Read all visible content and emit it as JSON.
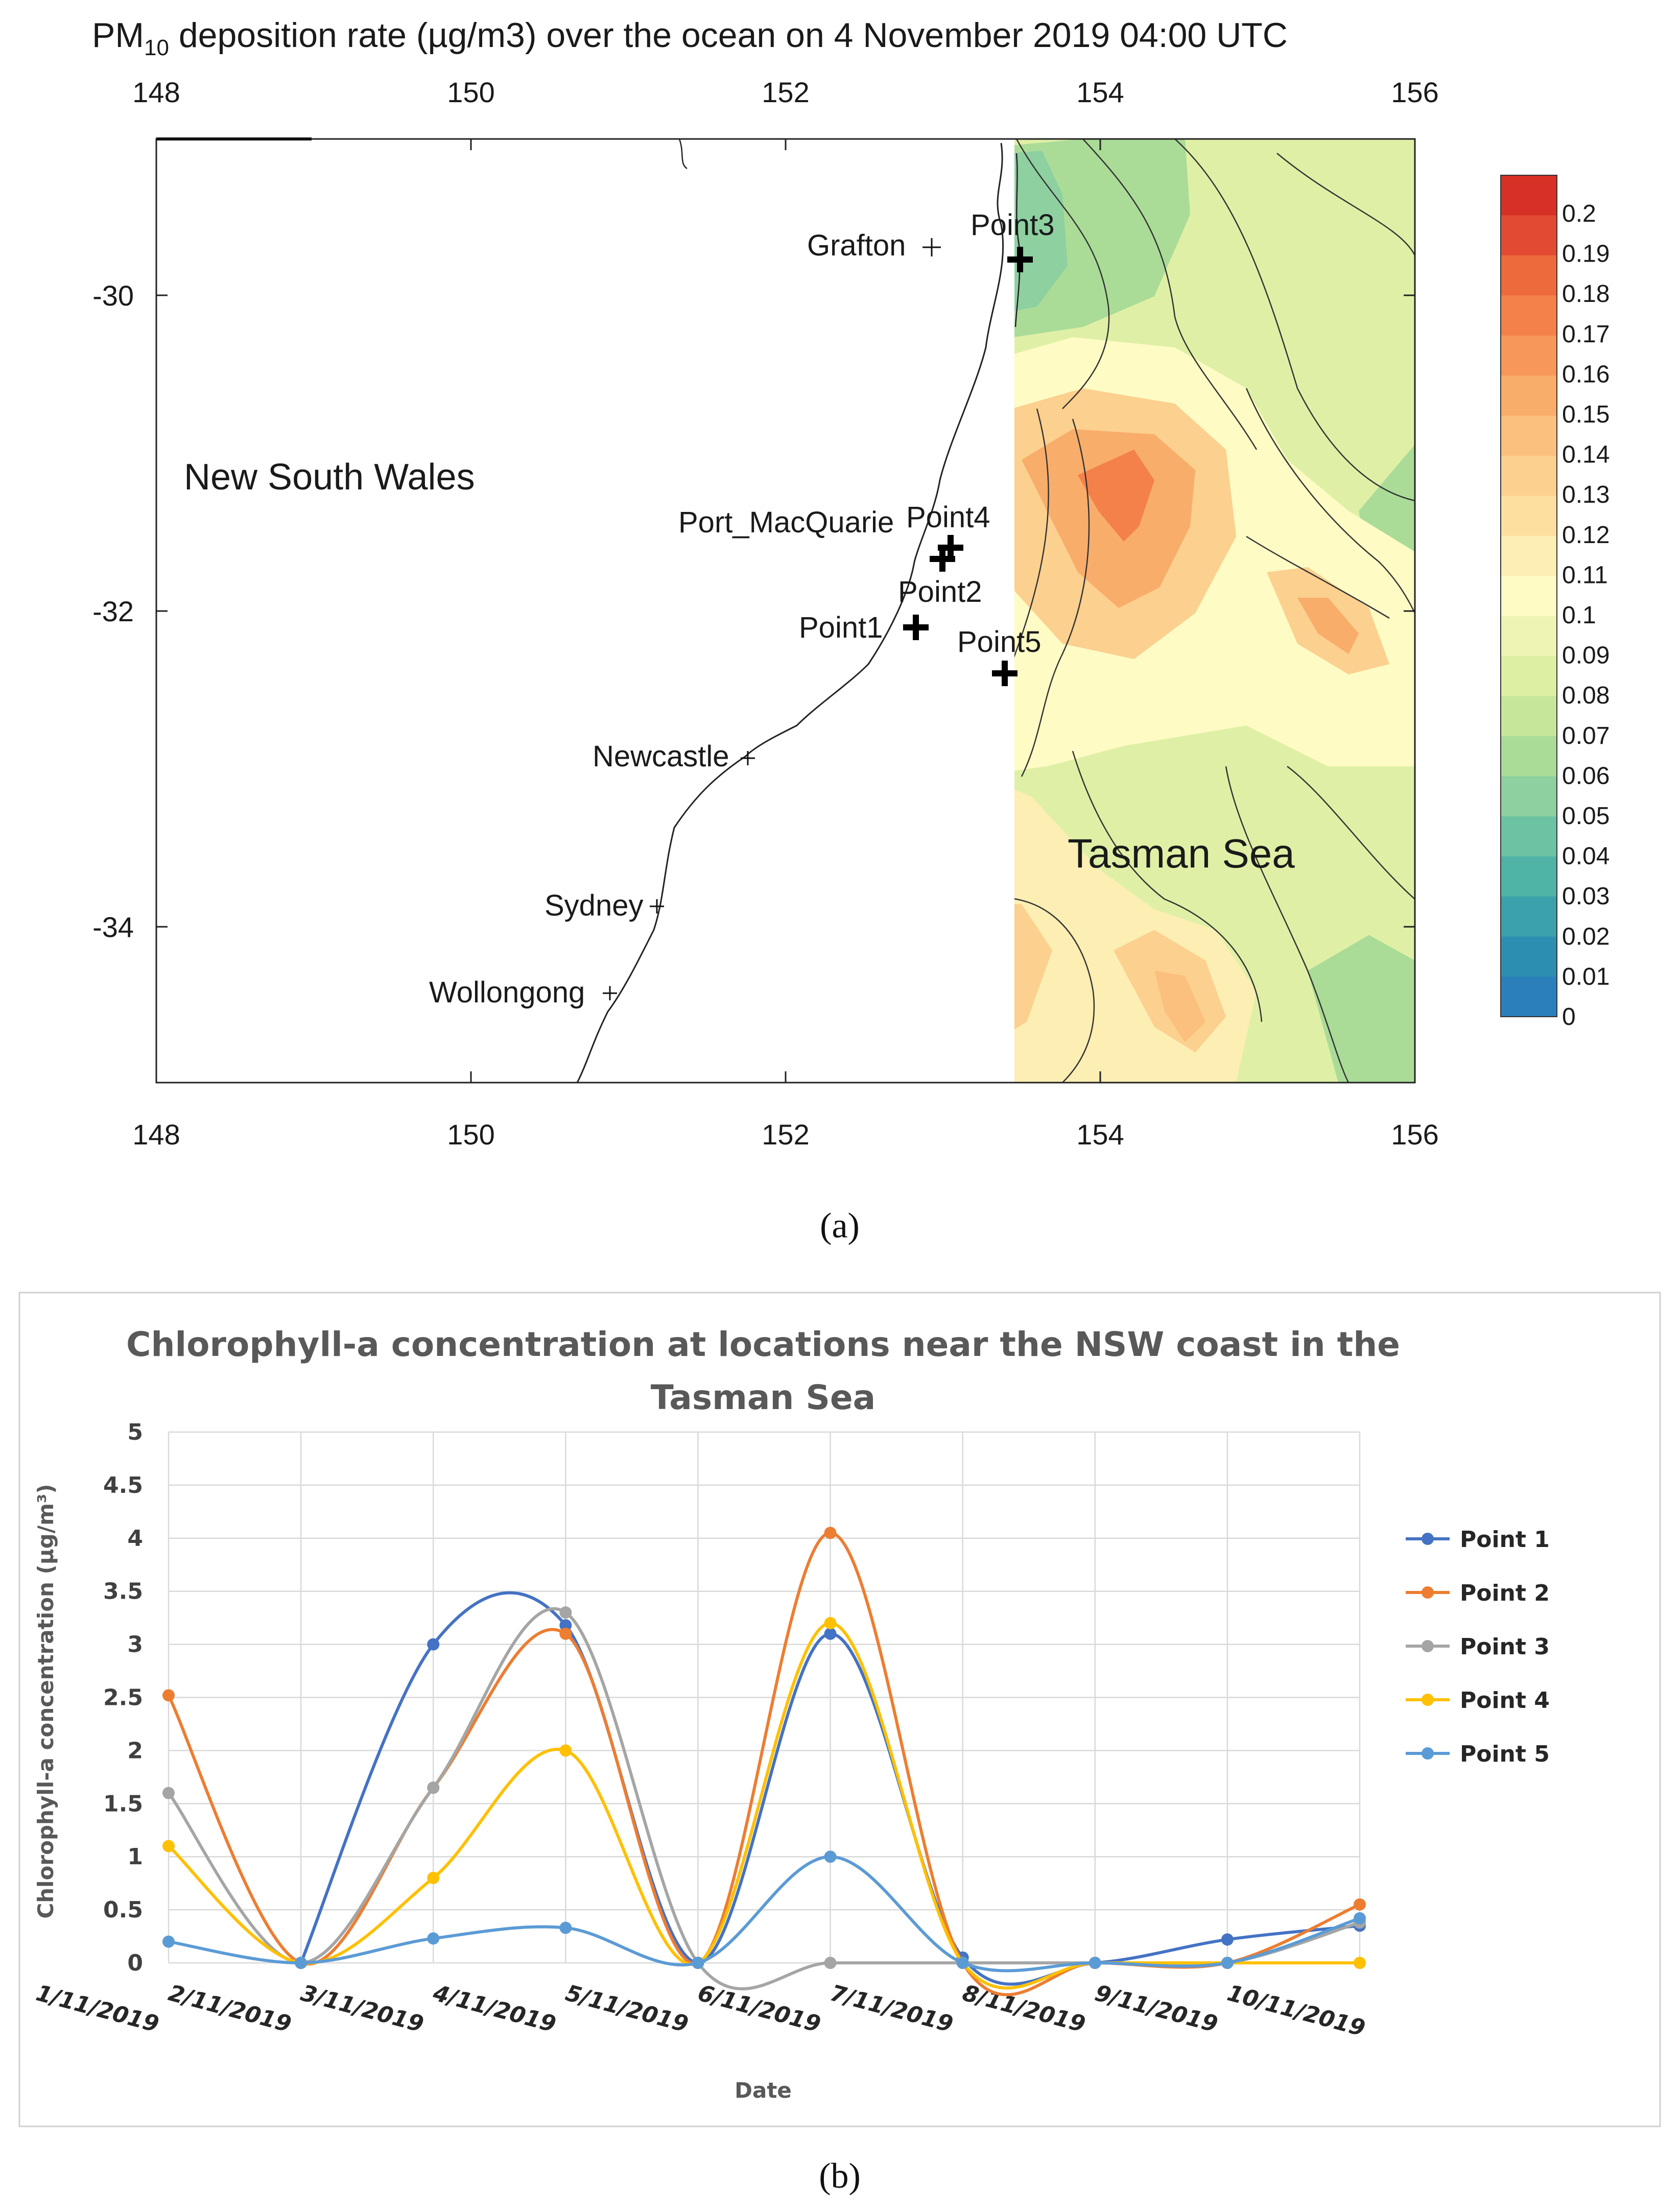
{
  "map": {
    "title_prefix": "PM",
    "title_subscript": "10",
    "title_suffix": " deposition rate (µg/m3) over the ocean on 4 November 2019 04:00 UTC",
    "lon_ticks": [
      "148",
      "150",
      "152",
      "154",
      "156"
    ],
    "lat_ticks": [
      "-30",
      "-32",
      "-34"
    ],
    "land_label": "New South Wales",
    "sea_label": "Tasman Sea",
    "places": [
      "Grafton",
      "Port_MacQuarie",
      "Newcastle",
      "Sydney",
      "Wollongong"
    ],
    "points": [
      "Point1",
      "Point2",
      "Point3",
      "Point4",
      "Point5"
    ],
    "colorbar_labels": [
      "0.2",
      "0.19",
      "0.18",
      "0.17",
      "0.16",
      "0.15",
      "0.14",
      "0.13",
      "0.12",
      "0.11",
      "0.1",
      "0.09",
      "0.08",
      "0.07",
      "0.06",
      "0.05",
      "0.04",
      "0.03",
      "0.02",
      "0.01",
      "0"
    ],
    "colorbar_colors": [
      "#d73027",
      "#e34a33",
      "#ed6a3c",
      "#f4814a",
      "#f7975a",
      "#f9ad6a",
      "#fbc07d",
      "#fcd08f",
      "#fde0a0",
      "#fdeeb3",
      "#fefbc4",
      "#eef5b4",
      "#dcefa3",
      "#c6e79a",
      "#aadc98",
      "#8ed0a0",
      "#6cc3a4",
      "#4fb3a6",
      "#3ba1ab",
      "#2c8fb1",
      "#2b7fba"
    ],
    "panel_label": "(a)"
  },
  "chart_data": {
    "type": "line",
    "title": "Chlorophyll-a concentration at locations near the NSW coast in the Tasman Sea",
    "title_lines": [
      "Chlorophyll-a concentration at locations near the NSW coast in the",
      "Tasman Sea"
    ],
    "xlabel": "Date",
    "ylabel": "Chlorophyll-a concentration (µg/m³)",
    "ylim": [
      0,
      5
    ],
    "yticks": [
      "0",
      "0.5",
      "1",
      "1.5",
      "2",
      "2.5",
      "3",
      "3.5",
      "4",
      "4.5",
      "5"
    ],
    "categories": [
      "1/11/2019",
      "2/11/2019",
      "3/11/2019",
      "4/11/2019",
      "5/11/2019",
      "6/11/2019",
      "7/11/2019",
      "8/11/2019",
      "9/11/2019",
      "10/11/2019"
    ],
    "series": [
      {
        "name": "Point 1",
        "color": "#4472c4",
        "values": [
          null,
          0,
          3.0,
          3.18,
          0,
          3.1,
          0.05,
          0,
          0.22,
          0.35
        ]
      },
      {
        "name": "Point 2",
        "color": "#ed7d31",
        "values": [
          2.52,
          0,
          1.65,
          3.1,
          0,
          4.05,
          0,
          0,
          0,
          0.55
        ]
      },
      {
        "name": "Point 3",
        "color": "#a5a5a5",
        "values": [
          1.6,
          0,
          1.65,
          3.3,
          0,
          0,
          0,
          0,
          0,
          0.38
        ]
      },
      {
        "name": "Point 4",
        "color": "#ffc000",
        "values": [
          1.1,
          0,
          0.8,
          2.0,
          0,
          3.2,
          0,
          0,
          0,
          0
        ]
      },
      {
        "name": "Point 5",
        "color": "#5b9bd5",
        "values": [
          0.2,
          0,
          0.23,
          0.33,
          0,
          1.0,
          0,
          0,
          0,
          0.42
        ]
      }
    ],
    "legend_position": "right",
    "panel_label": "(b)"
  }
}
